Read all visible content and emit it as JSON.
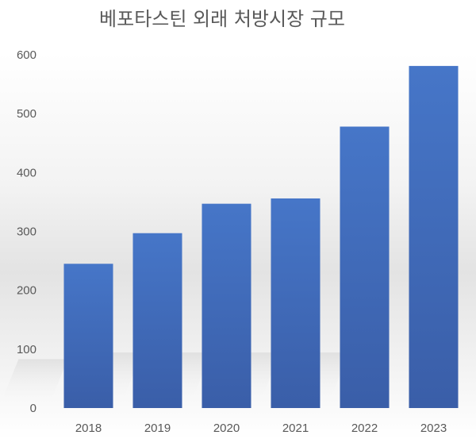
{
  "chart_data": {
    "type": "bar",
    "title": "베포타스틴 외래 처방시장 규모",
    "categories": [
      "2018",
      "2019",
      "2020",
      "2021",
      "2022",
      "2023"
    ],
    "series": [
      {
        "values": [
          245,
          297,
          347,
          356,
          478,
          581
        ],
        "color": "#4472c4"
      }
    ],
    "ylim": [
      0,
      600
    ],
    "yticks": [
      0,
      100,
      200,
      300,
      400,
      500,
      600
    ],
    "xlabel": "",
    "ylabel": "",
    "grid": false,
    "legend": "none"
  },
  "colors": {
    "bar_top": "#4676c8",
    "bar_bottom": "#3a5da6",
    "text": "#595959"
  }
}
